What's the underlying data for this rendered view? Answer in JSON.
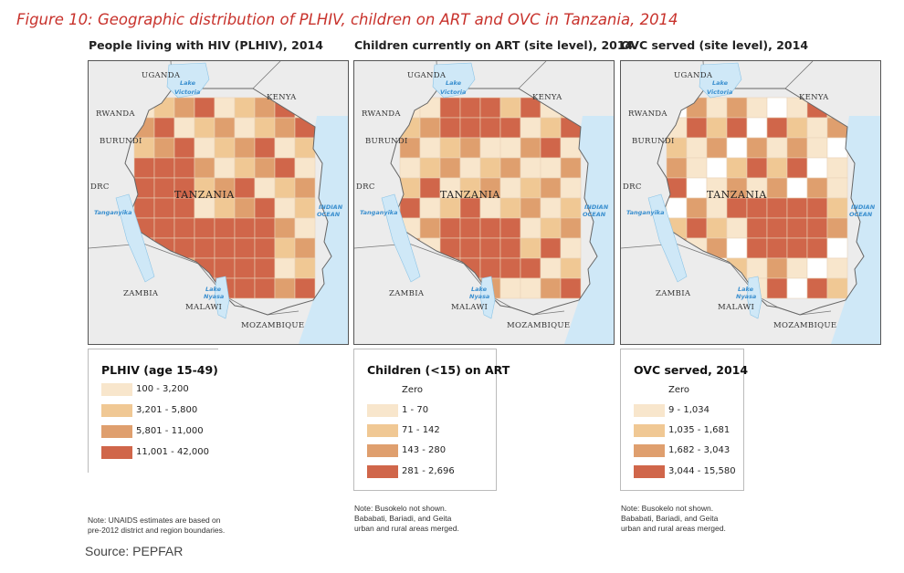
{
  "figure_title": "Figure 10: Geographic distribution of PLHIV, children on ART and OVC in Tanzania, 2014",
  "source": "Source: PEPFAR",
  "map_labels": {
    "uganda": "UGANDA",
    "kenya": "KENYA",
    "rwanda": "RWANDA",
    "burundi": "BURUNDI",
    "drc": "DRC",
    "tanzania": "TANZANIA",
    "zambia": "ZAMBIA",
    "malawi": "MALAWI",
    "mozambique": "MOZAMBIQUE",
    "lake_victoria_1": "Lake",
    "lake_victoria_2": "Victoria",
    "lake_tanganyika": "Tanganyika",
    "lake_nyasa_1": "Lake",
    "lake_nyasa_2": "Nyasa",
    "indian_ocean_1": "INDIAN",
    "indian_ocean_2": "OCEAN"
  },
  "panels": [
    {
      "title": "People living with HIV (PLHIV), 2014",
      "legend_title": "PLHIV (age 15-49)",
      "legend": [
        {
          "label": "100 - 3,200",
          "color": "#f8e6cc"
        },
        {
          "label": "3,201 - 5,800",
          "color": "#f0c894"
        },
        {
          "label": "5,801 - 11,000",
          "color": "#df9f6e"
        },
        {
          "label": "11,001 - 42,000",
          "color": "#d0664a"
        }
      ],
      "note": [
        "Note: UNAIDS estimates are based on",
        "pre-2012 district and region boundaries."
      ]
    },
    {
      "title": "Children currently on ART (site level), 2014",
      "legend_title": "Children (<15) on ART",
      "legend": [
        {
          "label": "Zero",
          "color": "#ffffff"
        },
        {
          "label": "1 - 70",
          "color": "#f8e6cc"
        },
        {
          "label": "71 - 142",
          "color": "#f0c894"
        },
        {
          "label": "143 - 280",
          "color": "#df9f6e"
        },
        {
          "label": "281 - 2,696",
          "color": "#d0664a"
        }
      ],
      "note": [
        "Note: Busokelo not shown.",
        "Bababati, Bariadi, and Geita",
        "urban and rural areas merged."
      ]
    },
    {
      "title": "OVC served (site level), 2014",
      "legend_title": "OVC served, 2014",
      "legend": [
        {
          "label": "Zero",
          "color": "#ffffff"
        },
        {
          "label": "9 - 1,034",
          "color": "#f8e6cc"
        },
        {
          "label": "1,035 - 1,681",
          "color": "#f0c894"
        },
        {
          "label": "1,682 - 3,043",
          "color": "#df9f6e"
        },
        {
          "label": "3,044 - 15,580",
          "color": "#d0664a"
        }
      ],
      "note": [
        "Note: Busokelo not shown.",
        "Bababati, Bariadi, and Geita",
        "urban and rural areas merged."
      ]
    }
  ]
}
